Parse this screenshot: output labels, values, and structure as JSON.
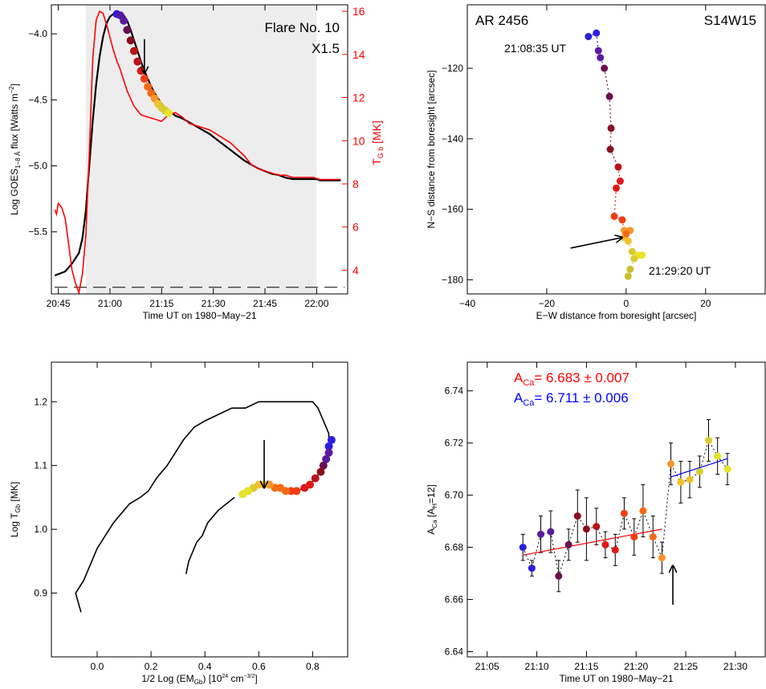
{
  "colors": {
    "black": "#000000",
    "red": "#ff0000",
    "blue": "#0000ff",
    "gray_band": "#ededed",
    "track_palette": [
      "#2a1ee0",
      "#5a1aa0",
      "#6a0f50",
      "#8a0f1e",
      "#b8141a",
      "#e01818",
      "#f03c12",
      "#f46a14",
      "#f8962a",
      "#f4c02e",
      "#d8cc30",
      "#e8e428"
    ]
  },
  "chart_data": [
    {
      "id": "goes-lightcurve",
      "type": "line",
      "xlabel": "Time UT on 1980−May−21",
      "ylabel_left": "Log GOES",
      "ylabel_left_sub": "1−8 Å",
      "ylabel_left_rest": " flux [Watts m",
      "ylabel_left_sup": "−2",
      "ylabel_left_end": "]",
      "ylabel_right": "T",
      "ylabel_right_sub": "G b",
      "ylabel_right_rest": " [MK]",
      "annotation_1": "Flare No.  10",
      "annotation_2": "X1.5",
      "x_ticks": [
        "20:45",
        "21:00",
        "21:15",
        "21:30",
        "21:45",
        "22:00"
      ],
      "x_tick_minutes": [
        0,
        15,
        30,
        45,
        60,
        75
      ],
      "xlim_minutes": [
        -2,
        84
      ],
      "y_left_ticks": [
        "−4.0",
        "−4.5",
        "−5.0",
        "−5.5"
      ],
      "y_left_tick_values": [
        -4.0,
        -4.5,
        -5.0,
        -5.5
      ],
      "ylim_left": [
        -5.97,
        -3.78
      ],
      "y_right_ticks": [
        "4",
        "6",
        "8",
        "10",
        "12",
        "14",
        "16"
      ],
      "y_right_tick_values": [
        4,
        6,
        8,
        10,
        12,
        14,
        16
      ],
      "ylim_right": [
        2.9,
        16.3
      ],
      "shaded_interval_minutes": [
        8,
        75
      ],
      "dashed_level_left": -5.92,
      "series": [
        {
          "name": "GOES 1-8 Å flux",
          "axis": "left",
          "color": "#000000",
          "x": [
            -1,
            2,
            4,
            6,
            7,
            8,
            9,
            10,
            11,
            12,
            13,
            14,
            15,
            16,
            17,
            18,
            19,
            20,
            21,
            22,
            23,
            24,
            25,
            26,
            27,
            28,
            29,
            30,
            31,
            32,
            33,
            34,
            36,
            38,
            40,
            42,
            44,
            46,
            48,
            50,
            52,
            54,
            56,
            58,
            60,
            62,
            64,
            66,
            68,
            70,
            72,
            74,
            75,
            76,
            78,
            80,
            82
          ],
          "y": [
            -5.83,
            -5.8,
            -5.74,
            -5.66,
            -5.55,
            -5.34,
            -5.0,
            -4.66,
            -4.38,
            -4.17,
            -4.02,
            -3.92,
            -3.87,
            -3.85,
            -3.85,
            -3.85,
            -3.86,
            -3.9,
            -3.97,
            -4.05,
            -4.13,
            -4.21,
            -4.28,
            -4.34,
            -4.4,
            -4.45,
            -4.49,
            -4.53,
            -4.56,
            -4.58,
            -4.6,
            -4.62,
            -4.64,
            -4.67,
            -4.7,
            -4.73,
            -4.76,
            -4.8,
            -4.84,
            -4.88,
            -4.92,
            -4.96,
            -4.99,
            -5.02,
            -5.04,
            -5.06,
            -5.07,
            -5.09,
            -5.1,
            -5.1,
            -5.1,
            -5.1,
            -5.1,
            -5.11,
            -5.11,
            -5.11,
            -5.11
          ]
        },
        {
          "name": "Temperature",
          "axis": "right",
          "color": "#ff0000",
          "x": [
            -1,
            -0.5,
            0,
            1,
            2,
            3,
            4,
            5,
            6,
            7,
            8,
            9,
            10,
            11,
            12,
            13,
            14,
            15,
            16,
            17,
            18,
            19,
            20,
            22,
            24,
            26,
            28,
            30,
            32,
            34,
            36,
            38,
            40,
            42,
            44,
            46,
            48,
            50,
            52,
            54,
            56,
            58,
            60,
            62,
            64,
            66,
            68,
            70,
            72,
            74,
            76,
            78,
            80,
            82
          ],
          "y": [
            6.8,
            6.6,
            7.1,
            6.9,
            6.4,
            5.2,
            4.0,
            3.4,
            2.95,
            3.8,
            5.6,
            9.4,
            13.8,
            15.6,
            16.0,
            15.9,
            15.4,
            14.8,
            14.2,
            13.7,
            13.3,
            12.8,
            12.3,
            11.6,
            11.2,
            11.1,
            11.0,
            10.9,
            11.2,
            11.3,
            11.1,
            10.8,
            10.7,
            10.6,
            10.5,
            10.3,
            10.1,
            9.9,
            9.6,
            9.3,
            8.9,
            8.7,
            8.6,
            8.5,
            8.4,
            8.4,
            8.3,
            8.3,
            8.3,
            8.3,
            8.2,
            8.2,
            8.2,
            8.2
          ]
        }
      ],
      "highlight_points": {
        "axis": "left",
        "x": [
          17,
          18,
          19,
          20,
          21,
          22,
          23,
          24,
          25,
          26,
          27,
          28,
          29,
          30,
          31,
          32
        ],
        "y": [
          -3.85,
          -3.86,
          -3.9,
          -3.97,
          -4.05,
          -4.13,
          -4.21,
          -4.28,
          -4.34,
          -4.4,
          -4.45,
          -4.49,
          -4.53,
          -4.56,
          -4.58,
          -4.6
        ]
      },
      "arrow": {
        "x": 25,
        "y_top": -4.04,
        "y_tip": -4.3
      }
    },
    {
      "id": "position-track",
      "type": "scatter",
      "xlabel": "E−W distance from boresight [arcsec]",
      "ylabel": "N−S distance from boresight [arcsec]",
      "title_left": "AR 2456",
      "title_right": "S14W15",
      "label_start": "21:08:35 UT",
      "label_end": "21:29:20 UT",
      "x_ticks": [
        "−40",
        "−20",
        "0",
        "20"
      ],
      "x_tick_values": [
        -40,
        -20,
        0,
        20
      ],
      "xlim": [
        -40,
        35
      ],
      "y_ticks": [
        "−120",
        "−140",
        "−160",
        "−180"
      ],
      "y_tick_values": [
        -120,
        -140,
        -160,
        -180
      ],
      "ylim": [
        -184,
        -102
      ],
      "points": {
        "x": [
          -9.5,
          -7.5,
          -7.0,
          -6.5,
          -5.5,
          -4.2,
          -3.8,
          -4.0,
          -2.0,
          -1.5,
          -2.5,
          -3.0,
          -1.0,
          -0.5,
          1.0,
          -0.5,
          0.0,
          0.5,
          1.5,
          3.0,
          4.0,
          2.0,
          1.0,
          0.5
        ],
        "y": [
          -111,
          -110,
          -115,
          -117,
          -120,
          -128,
          -137,
          -143,
          -148,
          -152,
          -154,
          -162,
          -163,
          -166,
          -166,
          -168,
          -167,
          -169,
          -172,
          -173,
          -173,
          -174,
          -177,
          -179
        ],
        "colors": [
          "#2a1ee0",
          "#2a1ee0",
          "#5a1aa0",
          "#5a1aa0",
          "#6a0f50",
          "#6a0f50",
          "#8a0f1e",
          "#8a0f1e",
          "#b8141a",
          "#e01818",
          "#e01818",
          "#f03c12",
          "#f03c12",
          "#f8962a",
          "#f8962a",
          "#f4c02e",
          "#f46a14",
          "#f4c02e",
          "#d8cc30",
          "#e8e428",
          "#e8e428",
          "#d8cc30",
          "#c8c028",
          "#c8c028"
        ]
      },
      "arrow": {
        "x_from": -14,
        "y_from": -171,
        "x_to": -1,
        "y_to": -168
      }
    },
    {
      "id": "temperature-emission-track",
      "type": "line",
      "xlabel": "1/2 Log (EM",
      "xlabel_sub": "Gb",
      "xlabel_rest": ") [10",
      "xlabel_sup1": "24",
      "xlabel_mid": " cm",
      "xlabel_sup2": "−3/2",
      "xlabel_end": "]",
      "ylabel": "Log T",
      "ylabel_sub": "Gb",
      "ylabel_rest": " [MK]",
      "x_ticks": [
        "0.0",
        "0.2",
        "0.4",
        "0.6",
        "0.8"
      ],
      "x_tick_values": [
        0.0,
        0.2,
        0.4,
        0.6,
        0.8
      ],
      "xlim": [
        -0.17,
        0.93
      ],
      "y_ticks": [
        "0.9",
        "1.0",
        "1.1",
        "1.2"
      ],
      "y_tick_values": [
        0.9,
        1.0,
        1.1,
        1.2
      ],
      "ylim": [
        0.8,
        1.262
      ],
      "series": [
        {
          "name": "rise",
          "color": "#000000",
          "x": [
            -0.06,
            -0.08,
            -0.05,
            -0.02,
            0.0,
            0.03,
            0.06,
            0.08,
            0.1,
            0.12,
            0.16,
            0.19,
            0.22,
            0.26,
            0.29,
            0.32,
            0.36,
            0.4,
            0.45,
            0.5,
            0.55,
            0.6,
            0.65,
            0.68,
            0.72,
            0.76,
            0.8,
            0.82,
            0.84,
            0.85,
            0.86,
            0.86,
            0.87
          ],
          "y": [
            0.87,
            0.9,
            0.92,
            0.95,
            0.97,
            0.99,
            1.01,
            1.02,
            1.03,
            1.04,
            1.05,
            1.06,
            1.08,
            1.1,
            1.12,
            1.14,
            1.16,
            1.17,
            1.18,
            1.19,
            1.19,
            1.2,
            1.2,
            1.2,
            1.2,
            1.2,
            1.2,
            1.19,
            1.17,
            1.16,
            1.15,
            1.14,
            1.14
          ]
        },
        {
          "name": "decay",
          "color": "#000000",
          "x": [
            0.33,
            0.34,
            0.35,
            0.37,
            0.39,
            0.41,
            0.43,
            0.45,
            0.48,
            0.51
          ],
          "y": [
            0.93,
            0.95,
            0.96,
            0.98,
            0.99,
            1.01,
            1.02,
            1.03,
            1.04,
            1.05
          ]
        }
      ],
      "highlight_points": {
        "x": [
          0.87,
          0.86,
          0.86,
          0.85,
          0.84,
          0.83,
          0.81,
          0.79,
          0.77,
          0.74,
          0.72,
          0.7,
          0.68,
          0.66,
          0.64,
          0.62,
          0.6,
          0.58,
          0.56,
          0.54
        ],
        "y": [
          1.14,
          1.13,
          1.12,
          1.11,
          1.1,
          1.09,
          1.08,
          1.07,
          1.065,
          1.06,
          1.06,
          1.06,
          1.065,
          1.065,
          1.07,
          1.07,
          1.07,
          1.065,
          1.06,
          1.055
        ],
        "colors": [
          "#2a1ee0",
          "#2a1ee0",
          "#5a1aa0",
          "#5a1aa0",
          "#6a0f50",
          "#8a0f1e",
          "#b8141a",
          "#e01818",
          "#e01818",
          "#f03c12",
          "#f03c12",
          "#f46a14",
          "#f46a14",
          "#f46a14",
          "#f8962a",
          "#f4c02e",
          "#f4c02e",
          "#d8cc30",
          "#e8e428",
          "#e8e428"
        ]
      },
      "arrow": {
        "x": 0.62,
        "y_top": 1.14,
        "y_tip": 1.065
      }
    },
    {
      "id": "calcium-abundance",
      "type": "scatter",
      "xlabel": "Time UT on 1980−May−21",
      "ylabel": "A",
      "ylabel_sub": "Ca",
      "ylabel_rest": " [A",
      "ylabel_sub2": "H",
      "ylabel_end": "=12]",
      "legend_red_lhs": "A",
      "legend_red_sub": "Ca",
      "legend_red_value": "= 6.683 ± 0.007",
      "legend_blue_lhs": "A",
      "legend_blue_sub": "Ca",
      "legend_blue_value": "= 6.711 ± 0.006",
      "x_ticks": [
        "21:05",
        "21:10",
        "21:15",
        "21:20",
        "21:25",
        "21:30"
      ],
      "x_tick_minutes": [
        5,
        10,
        15,
        20,
        25,
        30
      ],
      "xlim_minutes": [
        3,
        33
      ],
      "y_ticks": [
        "6.64",
        "6.66",
        "6.68",
        "6.70",
        "6.72",
        "6.74"
      ],
      "y_tick_values": [
        6.64,
        6.66,
        6.68,
        6.7,
        6.72,
        6.74
      ],
      "ylim": [
        6.638,
        6.751
      ],
      "points": {
        "x": [
          8.6,
          9.5,
          10.4,
          11.4,
          12.2,
          13.2,
          14.1,
          15.0,
          16.0,
          16.9,
          17.9,
          18.8,
          19.8,
          20.7,
          21.7,
          22.6,
          23.5,
          24.5,
          25.4,
          26.4,
          27.3,
          28.2,
          29.2
        ],
        "y": [
          6.68,
          6.672,
          6.685,
          6.686,
          6.669,
          6.681,
          6.692,
          6.687,
          6.688,
          6.681,
          6.679,
          6.693,
          6.684,
          6.694,
          6.684,
          6.676,
          6.712,
          6.705,
          6.706,
          6.709,
          6.721,
          6.715,
          6.71
        ],
        "err": [
          0.005,
          0.003,
          0.007,
          0.008,
          0.006,
          0.006,
          0.01,
          0.012,
          0.007,
          0.005,
          0.006,
          0.006,
          0.007,
          0.01,
          0.008,
          0.006,
          0.008,
          0.008,
          0.007,
          0.006,
          0.008,
          0.007,
          0.006
        ],
        "colors": [
          "#2a1ee0",
          "#2a1ee0",
          "#5a1aa0",
          "#5a1aa0",
          "#6a0f50",
          "#6a0f50",
          "#8a0f1e",
          "#8a0f1e",
          "#b8141a",
          "#e01818",
          "#e01818",
          "#f03c12",
          "#f03c12",
          "#f46a14",
          "#f46a14",
          "#f8962a",
          "#f8962a",
          "#f4c02e",
          "#f4c02e",
          "#d8cc30",
          "#d8cc30",
          "#e8e428",
          "#e8e428"
        ]
      },
      "fit_red": {
        "x": [
          8.6,
          22.6
        ],
        "y": [
          6.677,
          6.687
        ]
      },
      "fit_blue": {
        "x": [
          23.5,
          29.2
        ],
        "y": [
          6.707,
          6.714
        ]
      },
      "arrow": {
        "x": 23.7,
        "y_bottom": 6.658,
        "y_tip": 6.673
      }
    }
  ]
}
